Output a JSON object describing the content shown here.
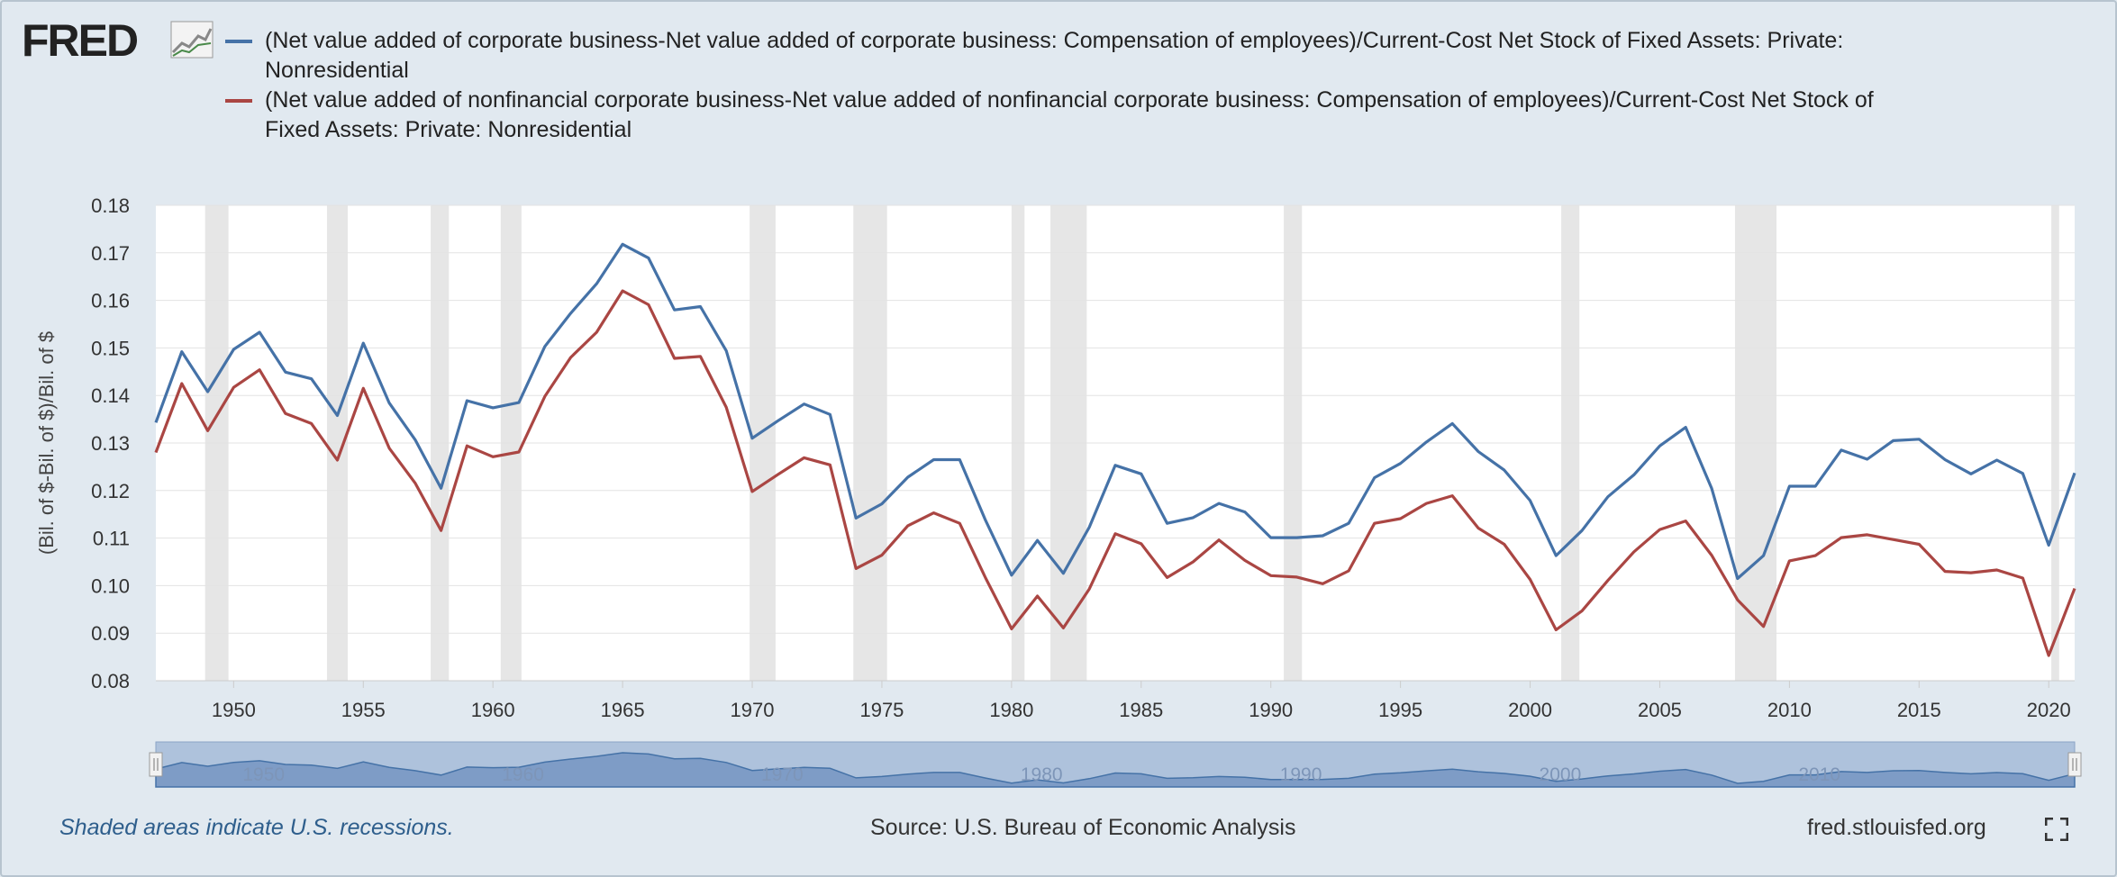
{
  "header": {
    "logo_text": "FRED",
    "logo_icon": "chart-line-icon"
  },
  "legend": [
    {
      "name": "(Net value added of corporate business-Net value added of corporate business: Compensation of employees)/Current-Cost Net Stock of Fixed Assets: Private: Nonresidential",
      "color": "#4572a7"
    },
    {
      "name": "(Net value added of nonfinancial corporate business-Net value added of nonfinancial corporate business: Compensation of employees)/Current-Cost Net Stock of Fixed Assets: Private: Nonresidential",
      "color": "#aa4643"
    }
  ],
  "footer": {
    "recession_note": "Shaded areas indicate U.S. recessions.",
    "source": "Source: U.S. Bureau of Economic Analysis",
    "site": "fred.stlouisfed.org",
    "fullscreen_icon": "fullscreen-icon"
  },
  "navigator": {
    "labels": [
      "1950",
      "1960",
      "1970",
      "1980",
      "1990",
      "2000",
      "2010"
    ]
  },
  "chart_data": {
    "type": "line",
    "title": "",
    "xlabel": "",
    "ylabel": "(Bil. of $-Bil. of $)/Bil. of $",
    "xlim": [
      1947,
      2021
    ],
    "ylim": [
      0.08,
      0.18
    ],
    "x_ticks": [
      1950,
      1955,
      1960,
      1965,
      1970,
      1975,
      1980,
      1985,
      1990,
      1995,
      2000,
      2005,
      2010,
      2015,
      2020
    ],
    "y_ticks": [
      "0.08",
      "0.09",
      "0.10",
      "0.11",
      "0.12",
      "0.13",
      "0.14",
      "0.15",
      "0.16",
      "0.17",
      "0.18"
    ],
    "grid": true,
    "legend_position": "top",
    "recessions": [
      [
        1948.9,
        1949.8
      ],
      [
        1953.6,
        1954.4
      ],
      [
        1957.6,
        1958.3
      ],
      [
        1960.3,
        1961.1
      ],
      [
        1969.9,
        1970.9
      ],
      [
        1973.9,
        1975.2
      ],
      [
        1980.0,
        1980.5
      ],
      [
        1981.5,
        1982.9
      ],
      [
        1990.5,
        1991.2
      ],
      [
        2001.2,
        2001.9
      ],
      [
        2007.9,
        2009.5
      ],
      [
        2020.1,
        2020.4
      ]
    ],
    "x": [
      1947,
      1948,
      1949,
      1950,
      1951,
      1952,
      1953,
      1954,
      1955,
      1956,
      1957,
      1958,
      1959,
      1960,
      1961,
      1962,
      1963,
      1964,
      1965,
      1966,
      1967,
      1968,
      1969,
      1970,
      1971,
      1972,
      1973,
      1974,
      1975,
      1976,
      1977,
      1978,
      1979,
      1980,
      1981,
      1982,
      1983,
      1984,
      1985,
      1986,
      1987,
      1988,
      1989,
      1990,
      1991,
      1992,
      1993,
      1994,
      1995,
      1996,
      1997,
      1998,
      1999,
      2000,
      2001,
      2002,
      2003,
      2004,
      2005,
      2006,
      2007,
      2008,
      2009,
      2010,
      2011,
      2012,
      2013,
      2014,
      2015,
      2016,
      2017,
      2018,
      2019,
      2020,
      2021
    ],
    "series": [
      {
        "name": "(Net value added of corporate business-Net value added of corporate business: Compensation of employees)/Current-Cost Net Stock of Fixed Assets: Private: Nonresidential",
        "color": "#4572a7",
        "values": [
          0.1343,
          0.1492,
          0.1408,
          0.1497,
          0.1533,
          0.1449,
          0.1435,
          0.1358,
          0.151,
          0.1384,
          0.1307,
          0.1205,
          0.1389,
          0.1374,
          0.1385,
          0.1503,
          0.1573,
          0.1635,
          0.1718,
          0.1689,
          0.158,
          0.1587,
          0.1494,
          0.131,
          0.1347,
          0.1382,
          0.136,
          0.1142,
          0.1172,
          0.1228,
          0.1265,
          0.1265,
          0.1137,
          0.1022,
          0.1095,
          0.1026,
          0.1123,
          0.1253,
          0.1235,
          0.1131,
          0.1143,
          0.1173,
          0.1155,
          0.1101,
          0.1101,
          0.1105,
          0.1131,
          0.1227,
          0.1257,
          0.1302,
          0.1341,
          0.1282,
          0.1243,
          0.1179,
          0.1063,
          0.1116,
          0.1187,
          0.1233,
          0.1294,
          0.1333,
          0.1205,
          0.1015,
          0.1063,
          0.1209,
          0.1209,
          0.1285,
          0.1266,
          0.1305,
          0.1308,
          0.1265,
          0.1235,
          0.1264,
          0.1236,
          0.1085,
          0.1237
        ]
      },
      {
        "name": "(Net value added of nonfinancial corporate business-Net value added of nonfinancial corporate business: Compensation of employees)/Current-Cost Net Stock of Fixed Assets: Private: Nonresidential",
        "color": "#aa4643",
        "values": [
          0.128,
          0.1425,
          0.1326,
          0.1417,
          0.1454,
          0.1362,
          0.1341,
          0.1264,
          0.1415,
          0.1289,
          0.1216,
          0.1116,
          0.1294,
          0.1271,
          0.1281,
          0.1398,
          0.148,
          0.1533,
          0.162,
          0.1591,
          0.1478,
          0.1482,
          0.1375,
          0.1198,
          0.1234,
          0.1269,
          0.1254,
          0.1036,
          0.1064,
          0.1126,
          0.1153,
          0.1131,
          0.1016,
          0.0909,
          0.0978,
          0.0911,
          0.0993,
          0.1109,
          0.1088,
          0.1017,
          0.105,
          0.1096,
          0.1053,
          0.1021,
          0.1018,
          0.1004,
          0.1031,
          0.1131,
          0.1141,
          0.1173,
          0.1189,
          0.1121,
          0.1087,
          0.1013,
          0.0907,
          0.0947,
          0.1011,
          0.1071,
          0.1118,
          0.1136,
          0.1064,
          0.097,
          0.0914,
          0.1052,
          0.1063,
          0.1101,
          0.1107,
          0.1097,
          0.1087,
          0.103,
          0.1027,
          0.1033,
          0.1016,
          0.0853,
          0.0994
        ]
      }
    ]
  }
}
